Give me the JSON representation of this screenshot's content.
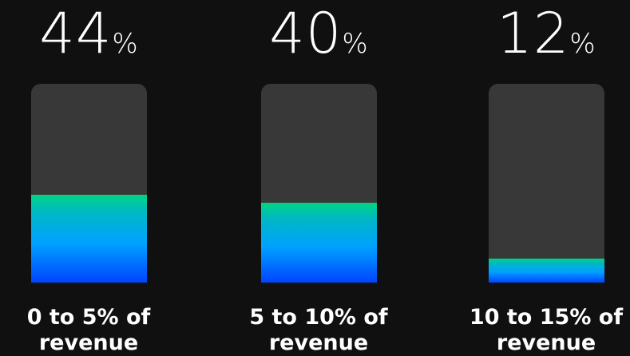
{
  "chart_data": {
    "type": "bar",
    "title": "",
    "xlabel": "",
    "ylabel": "",
    "ylim": [
      0,
      100
    ],
    "unit": "%",
    "categories": [
      [
        "0 to 5% of",
        "revenue"
      ],
      [
        "5 to 10% of",
        "revenue"
      ],
      [
        "10 to 15% of",
        "revenue"
      ]
    ],
    "values": [
      44,
      40,
      12
    ],
    "colors": {
      "background": "#101010",
      "track": "#383838",
      "fill_top": "#00d484",
      "fill_bottom": "#0044ff",
      "text": "#ffffff"
    }
  }
}
